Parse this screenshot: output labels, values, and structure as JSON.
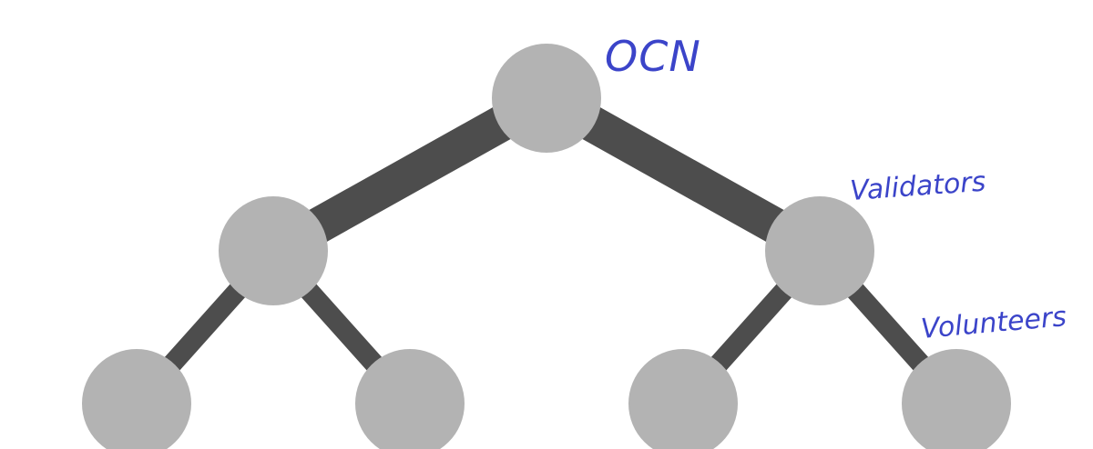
{
  "labels": {
    "root": "OCN",
    "middle": "Validators",
    "leaves": "Volunteers"
  },
  "colors": {
    "node_fill": "#b3b3b3",
    "edge_stroke": "#4d4d4d",
    "handwriting": "#3b44c9",
    "background": "#ffffff"
  }
}
